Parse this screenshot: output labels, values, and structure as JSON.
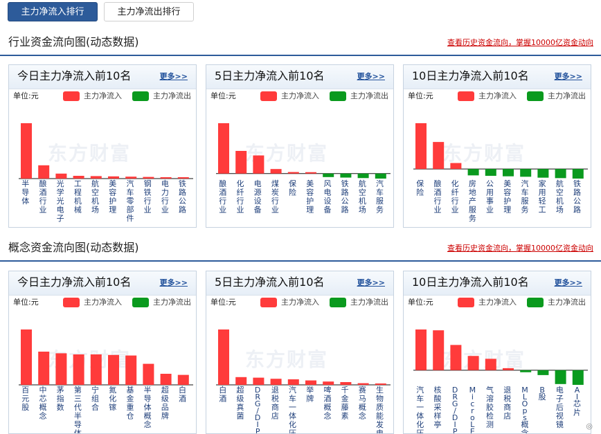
{
  "tabs": {
    "inflow_label": "主力净流入排行",
    "outflow_label": "主力净流出排行"
  },
  "colors": {
    "inflow": "#ff3b3b",
    "outflow": "#0a9a1e",
    "accent": "#2d5b9a"
  },
  "sections": [
    {
      "title": "行业资金流向图(动态数据)",
      "link": "查看历史资金流向，掌握10000亿资金动向",
      "panels": [
        {
          "title": "今日主力净流入前10名",
          "more": "更多>>",
          "unit": "单位:元",
          "legend_in": "主力净流入",
          "legend_out": "主力净流出",
          "watermark": "东方财富",
          "chart_data": {
            "type": "bar",
            "categories": [
              "半导体",
              "酿酒行业",
              "光学光电子",
              "工程机械",
              "航空机场",
              "美容护理",
              "汽车零部件",
              "钢铁行业",
              "电力行业",
              "铁路公路"
            ],
            "values": [
              1.0,
              0.24,
              0.09,
              0.05,
              0.045,
              0.04,
              0.035,
              0.03,
              0.025,
              0.01
            ]
          }
        },
        {
          "title": "5日主力净流入前10名",
          "more": "更多>>",
          "unit": "单位:元",
          "legend_in": "主力净流入",
          "legend_out": "主力净流出",
          "watermark": "东方财富",
          "chart_data": {
            "type": "bar",
            "categories": [
              "酿酒行业",
              "化纤行业",
              "电源设备",
              "煤炭行业",
              "保险",
              "美容护理",
              "风电设备",
              "铁路公路",
              "航空机场",
              "汽车服务"
            ],
            "values": [
              1.0,
              0.45,
              0.36,
              0.09,
              0.03,
              0.0,
              -0.07,
              -0.08,
              -0.09,
              -0.1
            ]
          }
        },
        {
          "title": "10日主力净流入前10名",
          "more": "更多>>",
          "unit": "单位:元",
          "legend_in": "主力净流入",
          "legend_out": "主力净流出",
          "watermark": "东方财富",
          "chart_data": {
            "type": "bar",
            "categories": [
              "保险",
              "酿酒行业",
              "化纤行业",
              "房地产服务",
              "公用事业",
              "美容护理",
              "汽车服务",
              "家用轻工",
              "航空机场",
              "铁路公路"
            ],
            "values": [
              1.0,
              0.59,
              0.13,
              -0.14,
              -0.15,
              -0.16,
              -0.17,
              -0.19,
              -0.2,
              -0.21
            ]
          }
        }
      ]
    },
    {
      "title": "概念资金流向图(动态数据)",
      "link": "查看历史资金流向，掌握10000亿资金动向",
      "panels": [
        {
          "title": "今日主力净流入前10名",
          "more": "更多>>",
          "unit": "单位:元",
          "legend_in": "主力净流入",
          "legend_out": "主力净流出",
          "watermark": "东方财富",
          "chart_data": {
            "type": "bar",
            "categories": [
              "百元股",
              "中芯概念",
              "茅指数",
              "第三代半导体",
              "宁组合",
              "氮化镓",
              "基金重仓",
              "半导体概念",
              "超级品牌",
              "白酒"
            ],
            "values": [
              1.0,
              0.6,
              0.57,
              0.55,
              0.55,
              0.54,
              0.53,
              0.38,
              0.2,
              0.18
            ]
          }
        },
        {
          "title": "5日主力净流入前10名",
          "more": "更多>>",
          "unit": "单位:元",
          "legend_in": "主力净流入",
          "legend_out": "主力净流出",
          "watermark": "东方财富",
          "chart_data": {
            "type": "bar",
            "categories": [
              "白酒",
              "超级真菌",
              "DRG/DIP",
              "退税商店",
              "汽车一体化压铸",
              "举牌",
              "啤酒概念",
              "千金藤素",
              "赛马概念",
              "生物质能发电"
            ],
            "values": [
              1.0,
              0.14,
              0.13,
              0.11,
              0.1,
              0.08,
              0.06,
              0.05,
              0.03,
              0.02
            ]
          }
        },
        {
          "title": "10日主力净流入前10名",
          "more": "更多>>",
          "unit": "单位:元",
          "legend_in": "主力净流入",
          "legend_out": "主力净流出",
          "watermark": "东方财富",
          "chart_data": {
            "type": "bar",
            "categories": [
              "汽车一体化压铸",
              "核酸采样亭",
              "DRG/DIP",
              "MicroLED",
              "气溶胶检测",
              "退税商店",
              "MLOps概念",
              "B股",
              "电子后视镜",
              "AI芯片"
            ],
            "values": [
              1.0,
              0.98,
              0.62,
              0.35,
              0.28,
              0.05,
              -0.05,
              -0.12,
              -0.34,
              -0.36
            ]
          }
        }
      ]
    }
  ]
}
